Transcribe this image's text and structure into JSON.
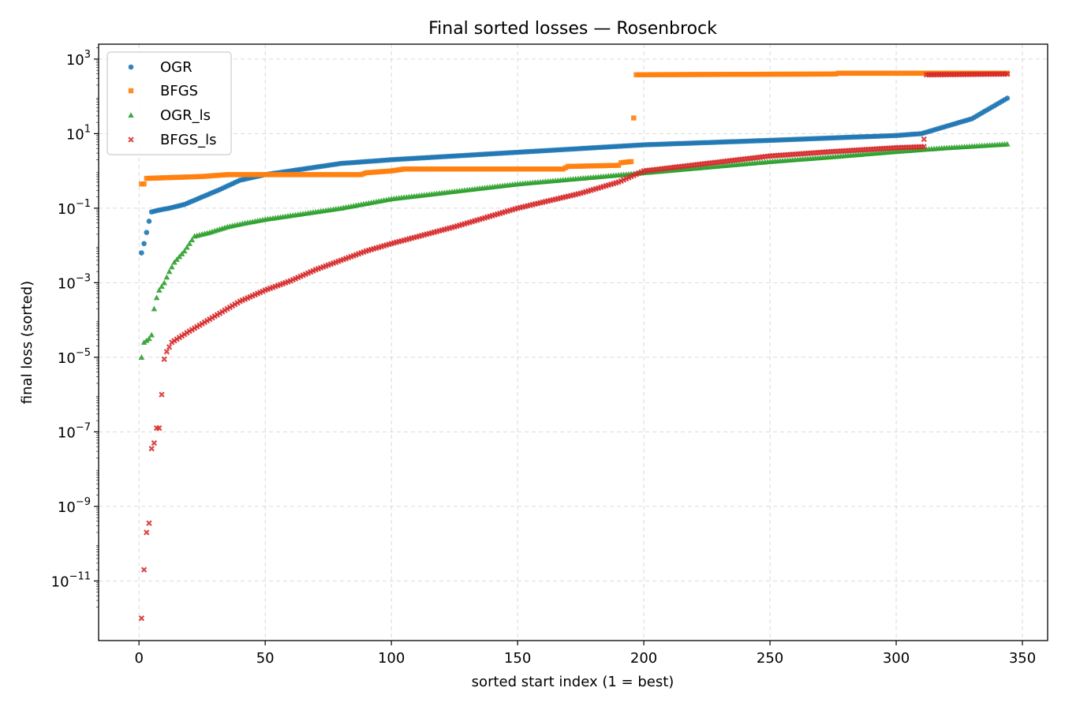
{
  "chart_data": {
    "type": "scatter",
    "title": "Final sorted losses — Rosenbrock",
    "xlabel": "sorted start index (1 = best)",
    "ylabel": "final loss (sorted)",
    "x_scale": "linear",
    "y_scale": "log",
    "xlim": [
      -16,
      360
    ],
    "ylim_log10": [
      -12.6,
      3.4
    ],
    "x_ticks": [
      0,
      50,
      100,
      150,
      200,
      250,
      300,
      350
    ],
    "x_tick_labels": [
      "0",
      "50",
      "100",
      "150",
      "200",
      "250",
      "300",
      "350"
    ],
    "y_ticks_log10": [
      3,
      1,
      -1,
      -3,
      -5,
      -7,
      -9,
      -11
    ],
    "y_tick_exponents": [
      "3",
      "1",
      "−1",
      "−3",
      "−5",
      "−7",
      "−9",
      "−11"
    ],
    "y_tick_base": "10",
    "grid": true,
    "legend_position": "top-left",
    "series": [
      {
        "name": "OGR",
        "marker": "circle",
        "color": "#1f77b4",
        "n": 344,
        "anchors_log10": [
          [
            1,
            -2.2
          ],
          [
            2,
            -1.95
          ],
          [
            3,
            -1.65
          ],
          [
            4,
            -1.35
          ],
          [
            5,
            -1.1
          ],
          [
            8,
            -1.05
          ],
          [
            12,
            -1.0
          ],
          [
            18,
            -0.9
          ],
          [
            25,
            -0.7
          ],
          [
            32,
            -0.5
          ],
          [
            40,
            -0.25
          ],
          [
            50,
            -0.1
          ],
          [
            60,
            0.0
          ],
          [
            80,
            0.2
          ],
          [
            100,
            0.3
          ],
          [
            150,
            0.5
          ],
          [
            200,
            0.7
          ],
          [
            250,
            0.82
          ],
          [
            300,
            0.95
          ],
          [
            310,
            1.0
          ],
          [
            320,
            1.2
          ],
          [
            330,
            1.4
          ],
          [
            344,
            1.95
          ]
        ]
      },
      {
        "name": "BFGS",
        "marker": "square",
        "color": "#ff7f0e",
        "n": 344,
        "anchors_log10": [
          [
            1,
            -0.35
          ],
          [
            2,
            -0.35
          ],
          [
            3,
            -0.2
          ],
          [
            25,
            -0.15
          ],
          [
            35,
            -0.1
          ],
          [
            88,
            -0.1
          ],
          [
            90,
            -0.05
          ],
          [
            100,
            0.0
          ],
          [
            105,
            0.05
          ],
          [
            168,
            0.05
          ],
          [
            170,
            0.12
          ],
          [
            190,
            0.15
          ],
          [
            191,
            0.22
          ],
          [
            195,
            0.25
          ],
          [
            196,
            1.42
          ],
          [
            197,
            2.58
          ],
          [
            276,
            2.6
          ],
          [
            277,
            2.62
          ],
          [
            344,
            2.62
          ]
        ]
      },
      {
        "name": "OGR_ls",
        "marker": "triangle",
        "color": "#2ca02c",
        "n": 344,
        "anchors_log10": [
          [
            1,
            -5.0
          ],
          [
            2,
            -4.6
          ],
          [
            4,
            -4.5
          ],
          [
            5,
            -4.4
          ],
          [
            6,
            -3.7
          ],
          [
            7,
            -3.4
          ],
          [
            8,
            -3.2
          ],
          [
            10,
            -3.0
          ],
          [
            12,
            -2.7
          ],
          [
            14,
            -2.45
          ],
          [
            18,
            -2.15
          ],
          [
            22,
            -1.75
          ],
          [
            28,
            -1.65
          ],
          [
            35,
            -1.5
          ],
          [
            42,
            -1.4
          ],
          [
            50,
            -1.3
          ],
          [
            65,
            -1.15
          ],
          [
            80,
            -1.0
          ],
          [
            100,
            -0.75
          ],
          [
            125,
            -0.55
          ],
          [
            150,
            -0.35
          ],
          [
            175,
            -0.2
          ],
          [
            200,
            -0.05
          ],
          [
            225,
            0.1
          ],
          [
            250,
            0.25
          ],
          [
            275,
            0.38
          ],
          [
            300,
            0.52
          ],
          [
            320,
            0.62
          ],
          [
            344,
            0.72
          ]
        ]
      },
      {
        "name": "BFGS_ls",
        "marker": "x",
        "color": "#d62728",
        "n": 344,
        "anchors_log10": [
          [
            1,
            -12.0
          ],
          [
            2,
            -10.7
          ],
          [
            3,
            -9.7
          ],
          [
            4,
            -9.45
          ],
          [
            5,
            -7.45
          ],
          [
            6,
            -7.3
          ],
          [
            7,
            -6.9
          ],
          [
            8,
            -6.9
          ],
          [
            9,
            -6.0
          ],
          [
            10,
            -5.05
          ],
          [
            11,
            -4.85
          ],
          [
            13,
            -4.6
          ],
          [
            20,
            -4.3
          ],
          [
            30,
            -3.9
          ],
          [
            40,
            -3.5
          ],
          [
            50,
            -3.2
          ],
          [
            60,
            -2.95
          ],
          [
            70,
            -2.65
          ],
          [
            80,
            -2.4
          ],
          [
            90,
            -2.15
          ],
          [
            100,
            -1.95
          ],
          [
            125,
            -1.5
          ],
          [
            150,
            -1.0
          ],
          [
            175,
            -0.6
          ],
          [
            190,
            -0.3
          ],
          [
            200,
            0.0
          ],
          [
            225,
            0.2
          ],
          [
            250,
            0.4
          ],
          [
            275,
            0.52
          ],
          [
            300,
            0.62
          ],
          [
            311,
            0.65
          ],
          [
            312,
            2.58
          ],
          [
            344,
            2.6
          ]
        ],
        "extra_points_log10": [
          [
            311,
            0.85
          ]
        ]
      }
    ]
  }
}
